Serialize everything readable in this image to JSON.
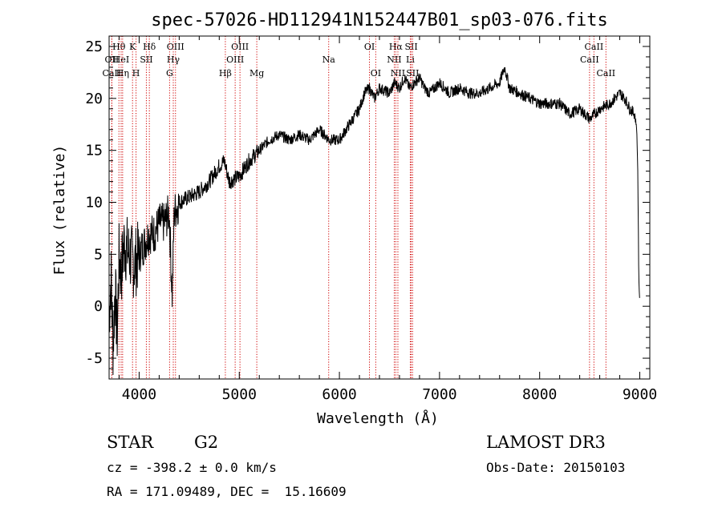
{
  "chart_data": {
    "type": "line",
    "title": "spec-57026-HD112941N152447B01_sp03-076.fits",
    "xlabel": "Wavelength (Å)",
    "ylabel": "Flux (relative)",
    "xlim": [
      3700,
      9100
    ],
    "ylim": [
      -7,
      26
    ],
    "xticks": [
      4000,
      5000,
      6000,
      7000,
      8000,
      9000
    ],
    "yticks": [
      -5,
      0,
      5,
      10,
      15,
      20,
      25
    ],
    "series": [
      {
        "name": "flux",
        "anchors_x": [
          3700,
          3720,
          3740,
          3760,
          3780,
          3800,
          3820,
          3850,
          3900,
          3950,
          4000,
          4050,
          4100,
          4150,
          4200,
          4250,
          4300,
          4330,
          4350,
          4400,
          4500,
          4600,
          4700,
          4800,
          4850,
          4900,
          5000,
          5100,
          5200,
          5300,
          5400,
          5500,
          5600,
          5700,
          5800,
          5900,
          6000,
          6100,
          6200,
          6250,
          6300,
          6350,
          6400,
          6500,
          6550,
          6600,
          6650,
          6700,
          6750,
          6800,
          6850,
          6900,
          7000,
          7100,
          7200,
          7300,
          7400,
          7500,
          7600,
          7650,
          7700,
          7800,
          7900,
          8000,
          8100,
          8200,
          8300,
          8400,
          8500,
          8600,
          8700,
          8750,
          8800,
          8850,
          8900,
          8950,
          8970,
          8980,
          8990,
          9000
        ],
        "anchors_y": [
          -1,
          3,
          -4,
          2,
          -3,
          5,
          3,
          6,
          5,
          4,
          5,
          6,
          7,
          7,
          8,
          8,
          9,
          1,
          9,
          10,
          10.5,
          11,
          12,
          13.5,
          14,
          12,
          12.5,
          14,
          15,
          16,
          16.5,
          16,
          16.5,
          16,
          17,
          16,
          16,
          17.5,
          19,
          20.5,
          21,
          20,
          21,
          20.5,
          21.5,
          21,
          22,
          21,
          21.5,
          22,
          21,
          20.5,
          21.5,
          20.5,
          21,
          20.5,
          20.5,
          21,
          21.5,
          23,
          21,
          20.5,
          20,
          19.5,
          19.5,
          19.5,
          18.5,
          19,
          18,
          19,
          19.5,
          20,
          20.5,
          20,
          19,
          18.5,
          17,
          13,
          3,
          0
        ],
        "noise_amplitude_note": "noisy spectrum; larger scatter below 4400 Å"
      }
    ],
    "spectral_lines": [
      {
        "label": "Hθ",
        "x": 3798,
        "row": 1
      },
      {
        "label": "OII",
        "x": 3727,
        "row": 2
      },
      {
        "label": "CaII",
        "x": 3727,
        "row": 3
      },
      {
        "label": "HeI",
        "x": 3820,
        "row": 2
      },
      {
        "label": "K",
        "x": 3934,
        "row": 1
      },
      {
        "label": "Hη",
        "x": 3835,
        "row": 3
      },
      {
        "label": "SII",
        "x": 4072,
        "row": 2
      },
      {
        "label": "H",
        "x": 3969,
        "row": 3
      },
      {
        "label": "Hδ",
        "x": 4102,
        "row": 1
      },
      {
        "label": "OIII",
        "x": 4363,
        "row": 1
      },
      {
        "label": "Hγ",
        "x": 4341,
        "row": 2
      },
      {
        "label": "G",
        "x": 4304,
        "row": 3
      },
      {
        "label": "OIII",
        "x": 5007,
        "row": 1
      },
      {
        "label": "OIII",
        "x": 4959,
        "row": 2
      },
      {
        "label": "Hβ",
        "x": 4861,
        "row": 3
      },
      {
        "label": "Mg",
        "x": 5175,
        "row": 3
      },
      {
        "label": "Na",
        "x": 5893,
        "row": 2
      },
      {
        "label": "OI",
        "x": 6300,
        "row": 1
      },
      {
        "label": "OI",
        "x": 6363,
        "row": 3
      },
      {
        "label": "Hα",
        "x": 6563,
        "row": 1
      },
      {
        "label": "NII",
        "x": 6548,
        "row": 2
      },
      {
        "label": "NII",
        "x": 6584,
        "row": 3
      },
      {
        "label": "SII",
        "x": 6717,
        "row": 1
      },
      {
        "label": "Li",
        "x": 6708,
        "row": 2
      },
      {
        "label": "SII",
        "x": 6731,
        "row": 3
      },
      {
        "label": "CaII",
        "x": 8542,
        "row": 1
      },
      {
        "label": "CaII",
        "x": 8498,
        "row": 2
      },
      {
        "label": "CaII",
        "x": 8662,
        "row": 3
      }
    ]
  },
  "info": {
    "object_class": "STAR",
    "subclass": "G2",
    "survey": "LAMOST DR3",
    "cz": "cz = -398.2 ± 0.0 km/s",
    "obs_date": "Obs-Date: 20150103",
    "coords": "RA = 171.09489, DEC =  15.16609"
  }
}
